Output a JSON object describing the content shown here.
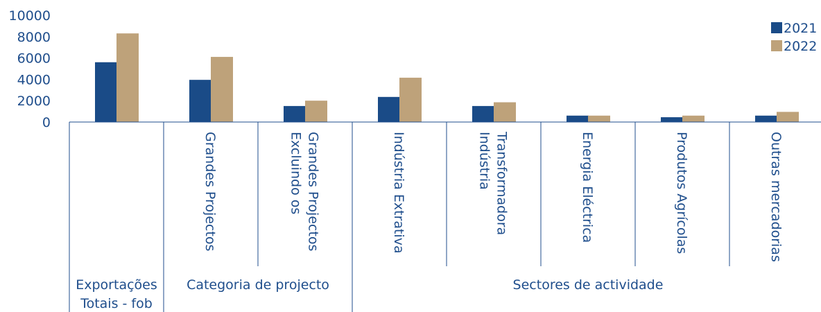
{
  "chart_data": {
    "type": "bar",
    "title": "",
    "xlabel": "",
    "ylabel": "",
    "ylim": [
      0,
      10000
    ],
    "yticks": [
      "0",
      "2000",
      "4000",
      "6000",
      "8000",
      "10000"
    ],
    "grid": false,
    "legend_position": "top-right",
    "categories": [
      "",
      "Grandes Projectos",
      "Excluindo os Grandes Projectos",
      "Indústria Extrativa",
      "Indústria Transformadora",
      "Energia Eléctrica",
      "Produtos Agrícolas",
      "Outras mercadorias"
    ],
    "category_lines": [
      [],
      [
        "Grandes Projectos"
      ],
      [
        "Excluindo os",
        "Grandes Projectos"
      ],
      [
        "Indústria Extrativa"
      ],
      [
        "Indústria",
        "Transformadora"
      ],
      [
        "Energia Eléctrica"
      ],
      [
        "Produtos Agrícolas"
      ],
      [
        "Outras mercadorias"
      ]
    ],
    "groups": [
      {
        "label_lines": [
          "Exportações",
          "Totais - fob"
        ],
        "span": [
          0,
          0
        ]
      },
      {
        "label_lines": [
          "Categoria de projecto"
        ],
        "span": [
          1,
          2
        ]
      },
      {
        "label_lines": [
          "Sectores de actividade"
        ],
        "span": [
          3,
          7
        ]
      }
    ],
    "series": [
      {
        "name": "2021",
        "color": "#1a4b87",
        "values": [
          5600,
          3950,
          1500,
          2350,
          1500,
          600,
          450,
          600
        ]
      },
      {
        "name": "2022",
        "color": "#bea27a",
        "values": [
          8300,
          6100,
          2000,
          4150,
          1850,
          600,
          600,
          950
        ]
      }
    ]
  }
}
